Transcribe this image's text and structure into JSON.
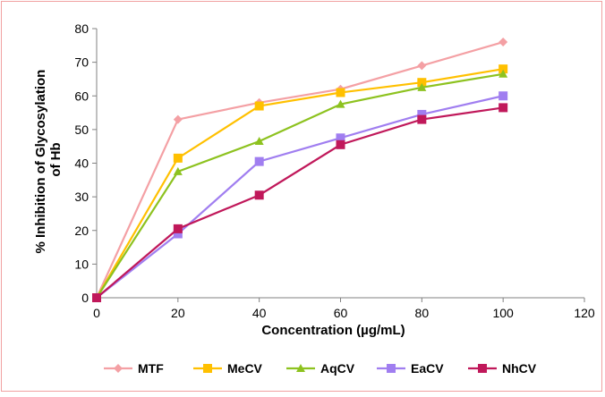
{
  "chart_data": {
    "type": "line",
    "title": "",
    "xlabel": "Concentration (µg/mL)",
    "ylabel_lines": [
      "% Inhibition of Glycosylation",
      "of Hb"
    ],
    "xlim": [
      0,
      120
    ],
    "ylim": [
      0,
      80
    ],
    "x_ticks": [
      0,
      20,
      40,
      60,
      80,
      100,
      120
    ],
    "y_ticks": [
      0,
      10,
      20,
      30,
      40,
      50,
      60,
      70,
      80
    ],
    "grid": false,
    "legend_position": "bottom",
    "x": [
      0,
      20,
      40,
      60,
      80,
      100
    ],
    "series": [
      {
        "name": "MTF",
        "color": "#f4a0a4",
        "marker": "diamond",
        "values": [
          0,
          53,
          58,
          62,
          69,
          76
        ]
      },
      {
        "name": "MeCV",
        "color": "#ffc000",
        "marker": "square",
        "values": [
          0,
          41.5,
          57,
          61,
          64,
          68
        ]
      },
      {
        "name": "AqCV",
        "color": "#8dc21f",
        "marker": "triangle",
        "values": [
          0,
          37.5,
          46.5,
          57.5,
          62.5,
          66.5
        ]
      },
      {
        "name": "EaCV",
        "color": "#a07ef0",
        "marker": "square",
        "values": [
          0,
          19,
          40.5,
          47.5,
          54.5,
          60
        ]
      },
      {
        "name": "NhCV",
        "color": "#c0185a",
        "marker": "square",
        "values": [
          0,
          20.5,
          30.5,
          45.5,
          53,
          56.5
        ]
      }
    ]
  }
}
